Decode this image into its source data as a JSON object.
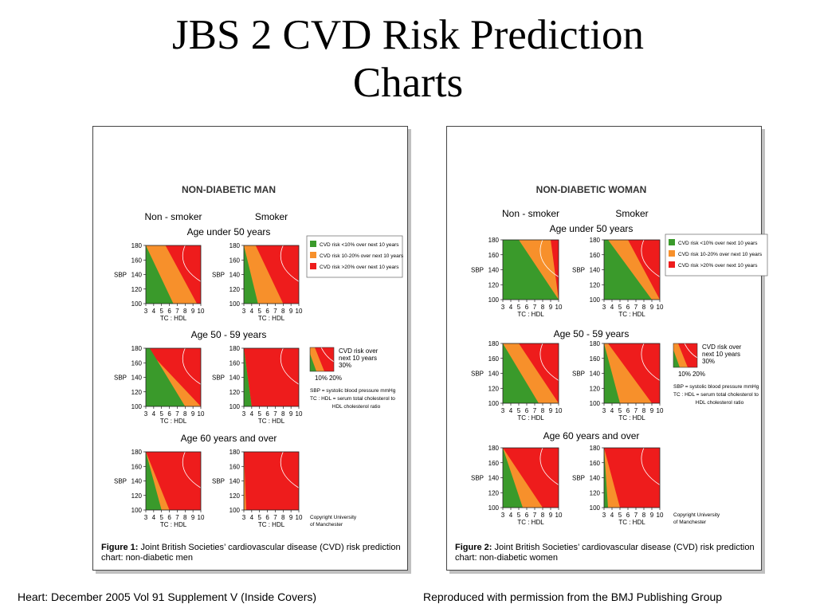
{
  "title_line1": "JBS 2 CVD Risk Prediction",
  "title_line2": "Charts",
  "footer": {
    "left": "Heart: December 2005 Vol 91 Supplement V (Inside Covers)",
    "right": "Reproduced with permission from the BMJ Publishing Group"
  },
  "colors": {
    "green": "#3a9a2b",
    "orange": "#f7902b",
    "red": "#ee1c1c"
  },
  "chart_data": [
    {
      "type": "heatmap",
      "title": "NON-DIABETIC MAN",
      "columns": [
        "Non - smoker",
        "Smoker"
      ],
      "age_groups": [
        "Age under 50 years",
        "Age 50 - 59 years",
        "Age 60 years and over"
      ],
      "xlabel": "TC : HDL",
      "ylabel": "SBP",
      "x_ticks": [
        3,
        4,
        5,
        6,
        7,
        8,
        9,
        10
      ],
      "y_ticks": [
        100,
        120,
        140,
        160,
        180
      ],
      "xlim": [
        3,
        10
      ],
      "ylim": [
        100,
        180
      ],
      "risk_boundaries_at_SBP100_and_SBP180": [
        {
          "row": 0,
          "col": 0,
          "b10": [
            6.5,
            3.0
          ],
          "b20": [
            9.5,
            5.5
          ]
        },
        {
          "row": 0,
          "col": 1,
          "b10": [
            4.8,
            3.0
          ],
          "b20": [
            8.0,
            4.5
          ]
        },
        {
          "row": 1,
          "col": 0,
          "b10": [
            8.0,
            3.5
          ],
          "b20": [
            10.0,
            3.0
          ]
        },
        {
          "row": 1,
          "col": 1,
          "b10": [
            4.0,
            3.0
          ],
          "b20": [
            4.0,
            3.0
          ]
        },
        {
          "row": 2,
          "col": 0,
          "b10": [
            5.0,
            3.0
          ],
          "b20": [
            6.0,
            3.0
          ]
        },
        {
          "row": 2,
          "col": 1,
          "b10": [
            3.0,
            3.0
          ],
          "b20": [
            3.3,
            3.0
          ]
        }
      ],
      "legend": [
        "CVD risk <10% over next 10 years",
        "CVD risk 10-20% over next 10 years",
        "CVD risk >20% over next 10 years"
      ],
      "key": {
        "label_lines": [
          "CVD risk over",
          "next 10 years",
          "30%"
        ],
        "pct10": "10%",
        "pct20": "20%",
        "note_lines": [
          "SBP = systolic blood pressure mmHg",
          "TC : HDL = serum total cholesterol to",
          "HDL cholesterol ratio"
        ]
      },
      "copyright_lines": [
        "Copyright University",
        "of Manchester"
      ],
      "caption_prefix": "Figure 1:",
      "caption_text": " Joint British Societies’ cardiovascular disease (CVD) risk prediction chart: non-diabetic men"
    },
    {
      "type": "heatmap",
      "title": "NON-DIABETIC WOMAN",
      "columns": [
        "Non - smoker",
        "Smoker"
      ],
      "age_groups": [
        "Age under 50 years",
        "Age 50 - 59 years",
        "Age 60 years and over"
      ],
      "xlabel": "TC : HDL",
      "ylabel": "SBP",
      "x_ticks": [
        3,
        4,
        5,
        6,
        7,
        8,
        9,
        10
      ],
      "y_ticks": [
        100,
        120,
        140,
        160,
        180
      ],
      "xlim": [
        3,
        10
      ],
      "ylim": [
        100,
        180
      ],
      "risk_boundaries_at_SBP100_and_SBP180": [
        {
          "row": 0,
          "col": 0,
          "b10": [
            10.0,
            5.0
          ],
          "b20": [
            10.0,
            9.0
          ]
        },
        {
          "row": 0,
          "col": 1,
          "b10": [
            9.0,
            3.5
          ],
          "b20": [
            10.0,
            6.0
          ]
        },
        {
          "row": 1,
          "col": 0,
          "b10": [
            7.5,
            3.0
          ],
          "b20": [
            10.0,
            5.0
          ]
        },
        {
          "row": 1,
          "col": 1,
          "b10": [
            5.0,
            3.0
          ],
          "b20": [
            9.0,
            3.5
          ]
        },
        {
          "row": 2,
          "col": 0,
          "b10": [
            5.5,
            3.0
          ],
          "b20": [
            8.0,
            3.0
          ]
        },
        {
          "row": 2,
          "col": 1,
          "b10": [
            3.5,
            3.0
          ],
          "b20": [
            5.0,
            3.0
          ]
        }
      ],
      "legend": [
        "CVD risk <10% over next 10 years",
        "CVD risk 10-20% over next 10 years",
        "CVD risk >20% over next 10 years"
      ],
      "key": {
        "label_lines": [
          "CVD risk over",
          "next 10 years",
          "30%"
        ],
        "pct10": "10%",
        "pct20": "20%",
        "note_lines": [
          "SBP = systolic blood pressure mmHg",
          "TC : HDL = serum total cholesterol to",
          "HDL cholesterol ratio"
        ]
      },
      "copyright_lines": [
        "Copyright University",
        "of Manchester"
      ],
      "caption_prefix": "Figure 2:",
      "caption_text": " Joint British Societies’ cardiovascular disease (CVD) risk prediction chart: non-diabetic women"
    }
  ]
}
